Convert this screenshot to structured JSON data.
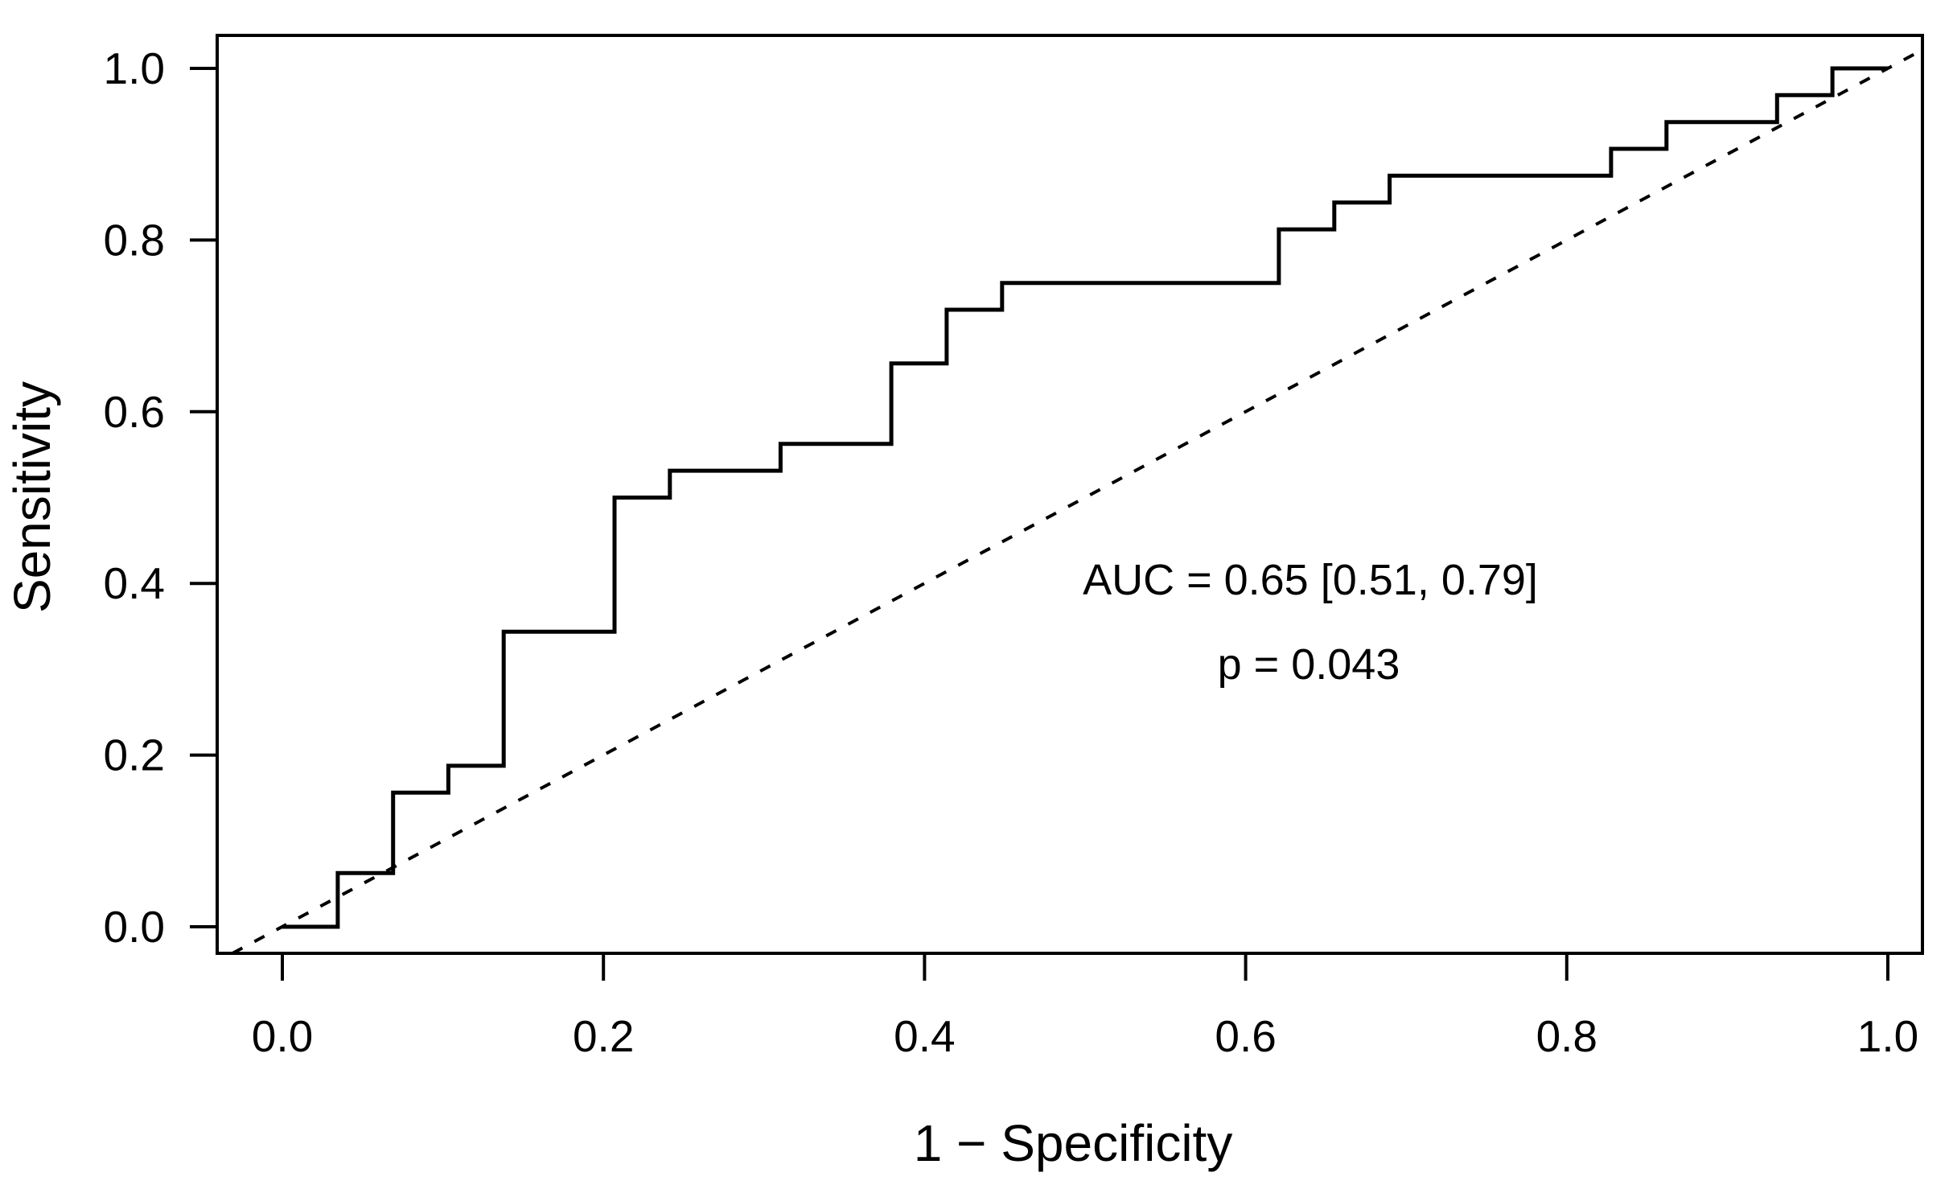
{
  "figure": {
    "background_color": "#ffffff",
    "foreground_color": "#000000"
  },
  "chart_data": {
    "type": "line",
    "subtype": "roc-step-curve",
    "title": "",
    "xlabel": "1 − Specificity",
    "ylabel": "Sensitivity",
    "xlim": [
      0,
      1
    ],
    "ylim": [
      0,
      1
    ],
    "grid": false,
    "legend": "none",
    "x_tick_labels": [
      "0.0",
      "0.2",
      "0.4",
      "0.6",
      "0.8",
      "1.0"
    ],
    "y_tick_labels": [
      "0.0",
      "0.2",
      "0.4",
      "0.6",
      "0.8",
      "1.0"
    ],
    "x_tick_values": [
      0,
      0.2,
      0.4,
      0.6,
      0.8,
      1.0
    ],
    "y_tick_values": [
      0,
      0.2,
      0.4,
      0.6,
      0.8,
      1.0
    ],
    "series": [
      {
        "name": "ROC curve",
        "line_style": "solid",
        "color": "#000000",
        "step": true,
        "points": [
          [
            0,
            0
          ],
          [
            0.0345,
            0.0625
          ],
          [
            0.069,
            0.1563
          ],
          [
            0.1034,
            0.1875
          ],
          [
            0.1379,
            0.3438
          ],
          [
            0.2069,
            0.5
          ],
          [
            0.2414,
            0.5313
          ],
          [
            0.3103,
            0.5625
          ],
          [
            0.3793,
            0.6563
          ],
          [
            0.4138,
            0.7188
          ],
          [
            0.4483,
            0.75
          ],
          [
            0.6207,
            0.8125
          ],
          [
            0.6552,
            0.8438
          ],
          [
            0.6897,
            0.875
          ],
          [
            0.8276,
            0.9063
          ],
          [
            0.8621,
            0.9375
          ],
          [
            0.931,
            0.9688
          ],
          [
            0.9655,
            1
          ],
          [
            1,
            1
          ]
        ]
      },
      {
        "name": "chance diagonal",
        "line_style": "dashed",
        "color": "#000000",
        "step": false,
        "points": [
          [
            0,
            0
          ],
          [
            1,
            1
          ]
        ]
      }
    ],
    "annotations": [
      {
        "text": "AUC = 0.65 [0.51, 0.79]",
        "x": 0.64,
        "y": 0.4
      },
      {
        "text": "p = 0.043",
        "x": 0.64,
        "y": 0.306
      }
    ],
    "auc": 0.65,
    "auc_ci_low": 0.51,
    "auc_ci_high": 0.79,
    "p_value": 0.043
  }
}
